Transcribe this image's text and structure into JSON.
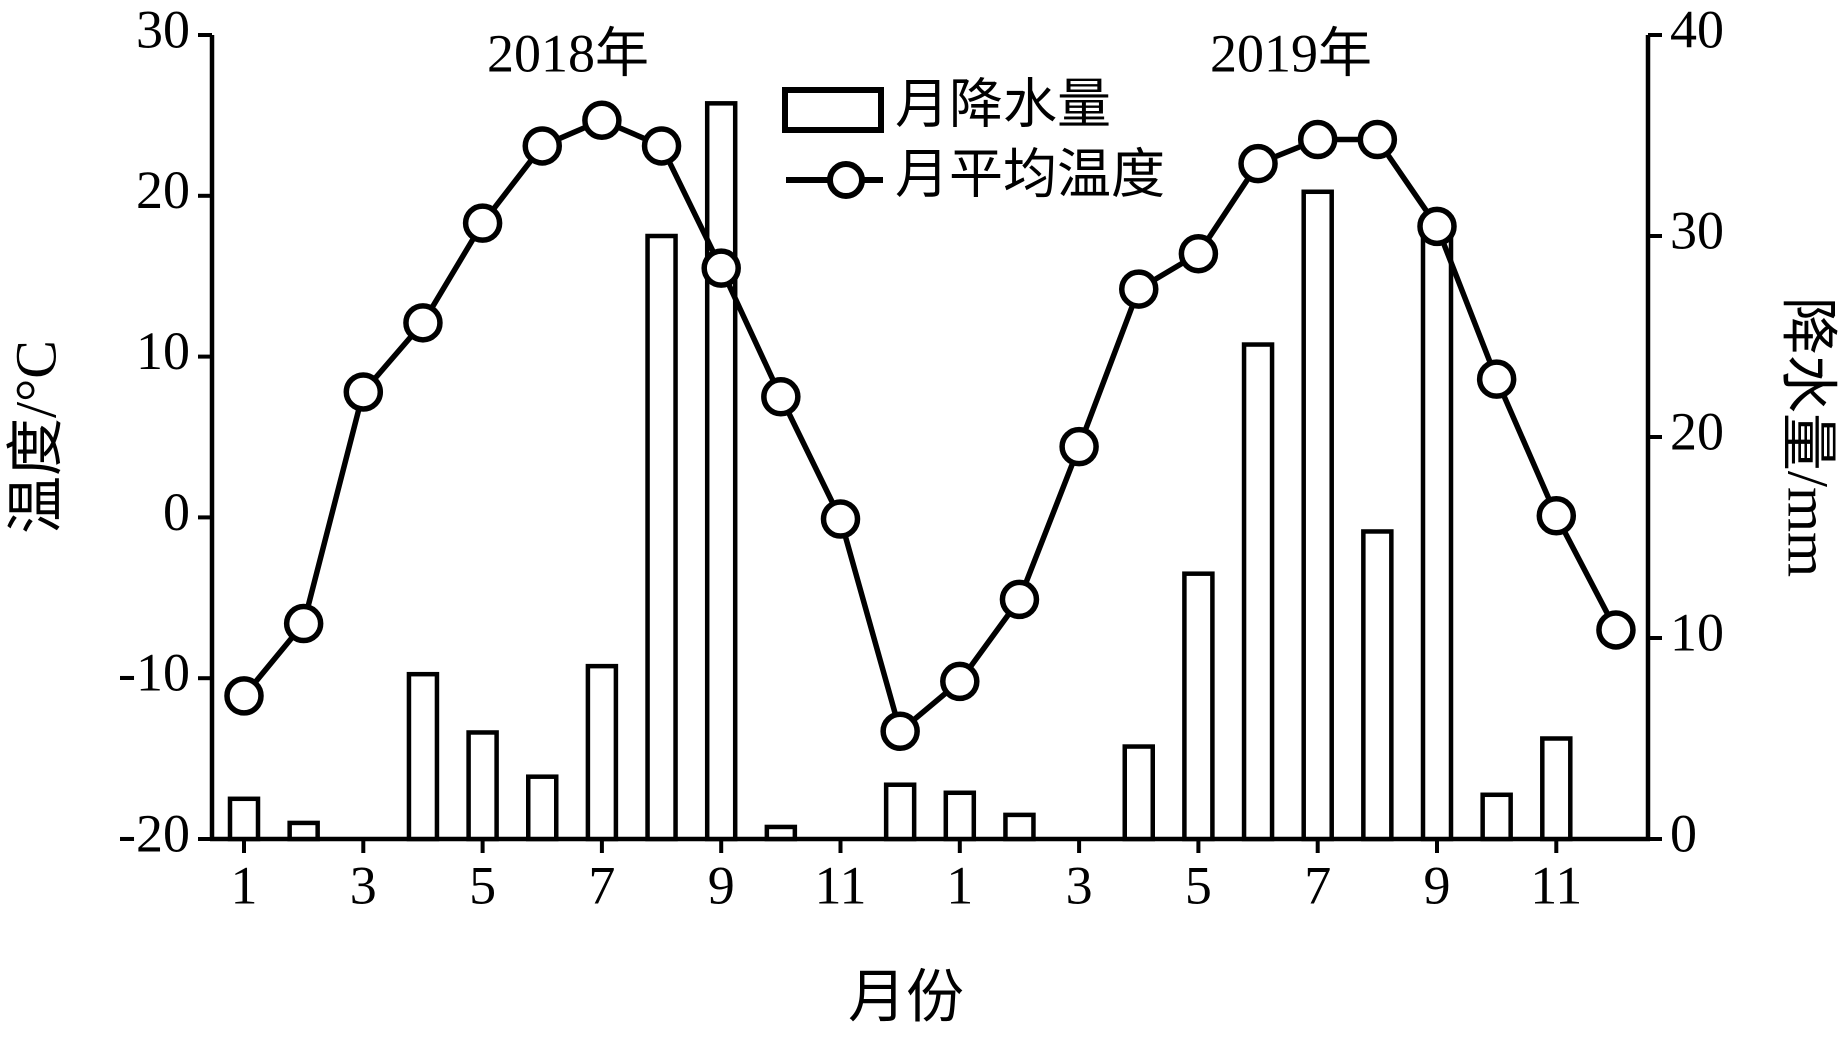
{
  "chart_data": {
    "type": "bar",
    "annotations": [
      "2018年",
      "2019年"
    ],
    "x_label": "月份",
    "y_label": "温度/°C",
    "y2_label": "降水量/mm",
    "categories": [
      "1",
      null,
      "3",
      null,
      "5",
      null,
      "7",
      null,
      "9",
      null,
      "11",
      null,
      "1",
      null,
      "3",
      null,
      "5",
      null,
      "7",
      null,
      "9",
      null,
      "11",
      null
    ],
    "series": [
      {
        "name": "月降水量",
        "type": "bar",
        "axis": "y2",
        "color": "#000000",
        "fill": "#ffffff",
        "values": [
          2.0,
          0.8,
          0,
          8.2,
          5.3,
          3.1,
          8.6,
          30.0,
          36.6,
          0.6,
          0,
          2.7,
          2.3,
          1.2,
          0,
          4.6,
          13.2,
          24.6,
          32.2,
          15.3,
          30.9,
          2.2,
          5.0,
          0
        ]
      },
      {
        "name": "月平均温度",
        "type": "line",
        "color": "#000000",
        "values": [
          -11.1,
          -6.6,
          7.8,
          12.1,
          18.3,
          23.1,
          24.7,
          23.1,
          15.5,
          7.5,
          -0.1,
          -13.3,
          -10.2,
          -5.1,
          4.4,
          14.2,
          16.4,
          22.0,
          23.5,
          23.5,
          18.1,
          8.6,
          0.1,
          -7.0
        ]
      }
    ],
    "ylim": [
      -20,
      30
    ],
    "yticks": [
      -20,
      -10,
      0,
      10,
      20,
      30
    ],
    "y2lim": [
      0,
      40
    ],
    "y2ticks": [
      0,
      10,
      20,
      30,
      40
    ],
    "grid": false,
    "legend": "top"
  }
}
